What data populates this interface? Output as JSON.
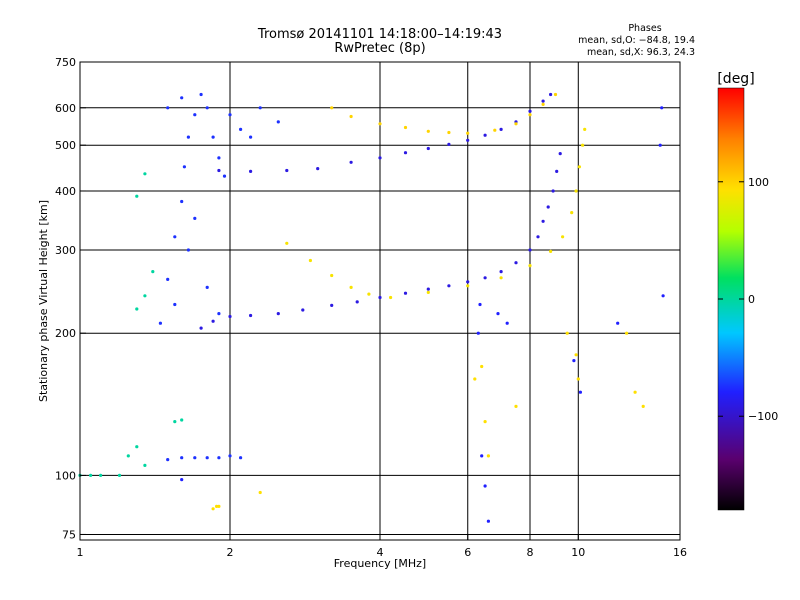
{
  "chart_data": {
    "type": "scatter",
    "title": "Tromsø 20141101 14:18:00–14:19:43",
    "subtitle": "RwPretec (8p)",
    "xlabel": "Frequency [MHz]",
    "ylabel": "Stationary phase Virtual Height [km]",
    "x_scale": "log",
    "y_scale": "log",
    "xlim": [
      1,
      16
    ],
    "ylim": [
      73,
      750
    ],
    "x_ticks": [
      1,
      2,
      4,
      6,
      8,
      10,
      16
    ],
    "x_tick_labels": [
      "1",
      "2",
      "4",
      "6",
      "8",
      "10",
      "16"
    ],
    "y_ticks": [
      75,
      100,
      200,
      300,
      400,
      500,
      600,
      750
    ],
    "y_tick_labels": [
      "75",
      "100",
      "200",
      "300",
      "400",
      "500",
      "600",
      "750"
    ],
    "grid": true,
    "annotation": {
      "heading": "Phases",
      "line1": "mean, sd,O: −84.8, 19.4",
      "line2": "mean, sd,X:  96.3, 24.3"
    },
    "colorbar": {
      "label": "[deg]",
      "range": [
        -180,
        180
      ],
      "ticks": [
        100,
        0,
        -100
      ],
      "tick_labels": [
        "100",
        "0",
        "−100"
      ],
      "colormap": "rainbow (black–purple–blue–cyan–green–yellow–orange–red)"
    },
    "series": [
      {
        "trace": "O-mode F2 trace",
        "phase": -110,
        "points": [
          [
            1.75,
            205
          ],
          [
            1.85,
            212
          ],
          [
            2.0,
            217
          ],
          [
            2.2,
            218
          ],
          [
            2.5,
            220
          ],
          [
            2.8,
            224
          ],
          [
            3.2,
            229
          ],
          [
            3.6,
            233
          ],
          [
            4.0,
            238
          ],
          [
            4.5,
            243
          ],
          [
            5.0,
            248
          ],
          [
            5.5,
            252
          ],
          [
            6.0,
            257
          ],
          [
            6.5,
            262
          ],
          [
            7.0,
            270
          ],
          [
            7.5,
            282
          ],
          [
            8.0,
            300
          ],
          [
            8.3,
            320
          ],
          [
            8.5,
            345
          ],
          [
            8.7,
            370
          ],
          [
            8.9,
            400
          ],
          [
            9.05,
            440
          ],
          [
            9.2,
            480
          ]
        ]
      },
      {
        "trace": "X-mode F2 trace",
        "phase": 95,
        "points": [
          [
            2.6,
            310
          ],
          [
            2.9,
            285
          ],
          [
            3.2,
            265
          ],
          [
            3.5,
            250
          ],
          [
            3.8,
            242
          ],
          [
            4.2,
            238
          ],
          [
            5.0,
            244
          ],
          [
            6.0,
            252
          ],
          [
            7.0,
            262
          ],
          [
            8.0,
            278
          ],
          [
            8.8,
            298
          ],
          [
            9.3,
            320
          ],
          [
            9.7,
            360
          ],
          [
            9.9,
            400
          ],
          [
            10.05,
            450
          ],
          [
            10.2,
            500
          ],
          [
            10.3,
            540
          ]
        ]
      },
      {
        "trace": "O-mode upper layer trace",
        "phase": -110,
        "points": [
          [
            1.9,
            442
          ],
          [
            2.2,
            440
          ],
          [
            2.6,
            442
          ],
          [
            3.0,
            446
          ],
          [
            3.5,
            460
          ],
          [
            4.0,
            470
          ],
          [
            4.5,
            482
          ],
          [
            5.0,
            492
          ],
          [
            5.5,
            502
          ],
          [
            6.0,
            512
          ],
          [
            6.5,
            525
          ],
          [
            7.0,
            540
          ],
          [
            7.5,
            560
          ],
          [
            8.0,
            590
          ],
          [
            8.5,
            620
          ],
          [
            8.8,
            640
          ]
        ]
      },
      {
        "trace": "X-mode upper layer trace",
        "phase": 105,
        "points": [
          [
            3.2,
            600
          ],
          [
            3.5,
            575
          ],
          [
            4.0,
            555
          ],
          [
            4.5,
            545
          ],
          [
            5.0,
            535
          ],
          [
            5.5,
            532
          ],
          [
            6.0,
            530
          ],
          [
            6.8,
            538
          ],
          [
            7.5,
            555
          ],
          [
            8.0,
            580
          ],
          [
            8.5,
            610
          ],
          [
            9.0,
            640
          ]
        ]
      },
      {
        "trace": "Low-frequency O-mode cluster",
        "phase": -95,
        "points": [
          [
            1.45,
            210
          ],
          [
            1.5,
            260
          ],
          [
            1.55,
            320
          ],
          [
            1.6,
            380
          ],
          [
            1.62,
            450
          ],
          [
            1.65,
            520
          ],
          [
            1.7,
            580
          ],
          [
            1.75,
            640
          ],
          [
            1.8,
            600
          ],
          [
            1.85,
            520
          ],
          [
            1.9,
            470
          ],
          [
            1.95,
            430
          ],
          [
            1.55,
            230
          ],
          [
            1.65,
            300
          ],
          [
            1.7,
            350
          ],
          [
            1.8,
            250
          ],
          [
            1.9,
            220
          ],
          [
            1.5,
            600
          ],
          [
            1.6,
            630
          ],
          [
            2.0,
            580
          ],
          [
            2.1,
            540
          ],
          [
            2.2,
            520
          ],
          [
            2.3,
            600
          ],
          [
            2.5,
            560
          ]
        ]
      },
      {
        "trace": "Sporadic E trace",
        "phase": -95,
        "points": [
          [
            1.5,
            108
          ],
          [
            1.6,
            109
          ],
          [
            1.7,
            109
          ],
          [
            1.8,
            109
          ],
          [
            1.9,
            109
          ],
          [
            2.0,
            110
          ],
          [
            2.1,
            109
          ]
        ]
      },
      {
        "trace": "Low-frequency scattered echoes",
        "phase": -20,
        "points": [
          [
            1.0,
            100
          ],
          [
            1.05,
            100
          ],
          [
            1.1,
            100
          ],
          [
            1.2,
            100
          ],
          [
            1.25,
            110
          ],
          [
            1.3,
            115
          ],
          [
            1.35,
            105
          ],
          [
            1.55,
            130
          ],
          [
            1.6,
            131
          ],
          [
            1.35,
            240
          ],
          [
            1.3,
            225
          ],
          [
            1.4,
            270
          ],
          [
            1.3,
            390
          ],
          [
            1.35,
            435
          ]
        ]
      },
      {
        "trace": "Sporadic echoes, positive phase",
        "phase": 100,
        "points": [
          [
            1.85,
            85
          ],
          [
            1.88,
            86
          ],
          [
            1.9,
            86
          ],
          [
            2.3,
            92
          ],
          [
            6.2,
            160
          ],
          [
            6.4,
            170
          ],
          [
            6.5,
            130
          ],
          [
            6.6,
            110
          ],
          [
            7.5,
            140
          ],
          [
            9.9,
            180
          ],
          [
            10.0,
            160
          ],
          [
            12.5,
            200
          ],
          [
            13.0,
            150
          ],
          [
            13.5,
            140
          ],
          [
            9.5,
            200
          ]
        ]
      },
      {
        "trace": "Sporadic echoes, negative phase",
        "phase": -100,
        "points": [
          [
            6.3,
            200
          ],
          [
            6.35,
            230
          ],
          [
            6.4,
            110
          ],
          [
            6.5,
            95
          ],
          [
            6.6,
            80
          ],
          [
            6.9,
            220
          ],
          [
            7.2,
            210
          ],
          [
            9.8,
            175
          ],
          [
            10.1,
            150
          ],
          [
            12.0,
            210
          ],
          [
            14.8,
            240
          ],
          [
            14.7,
            600
          ],
          [
            14.6,
            500
          ],
          [
            1.6,
            98
          ]
        ]
      }
    ]
  }
}
